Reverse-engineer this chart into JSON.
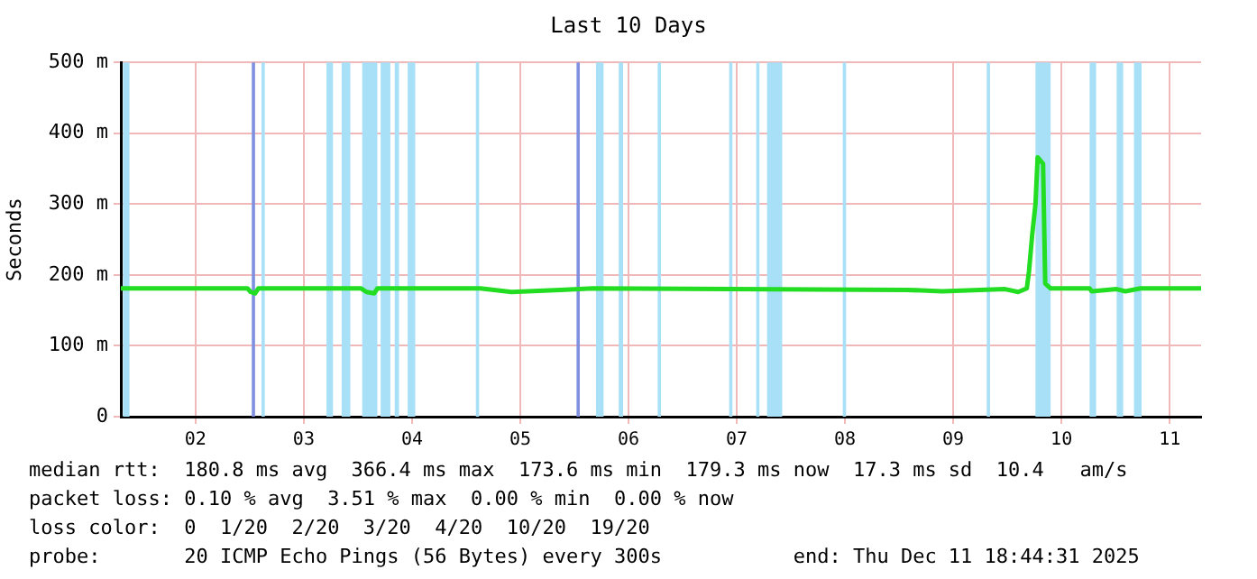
{
  "chart_data": {
    "type": "line",
    "title": "Last 10 Days",
    "ylabel": "Seconds",
    "xlim": [
      1.78,
      11.76
    ],
    "xticks": [
      {
        "value": 2.47,
        "label": "02"
      },
      {
        "value": 3.47,
        "label": "03"
      },
      {
        "value": 4.47,
        "label": "04"
      },
      {
        "value": 5.47,
        "label": "05"
      },
      {
        "value": 6.47,
        "label": "06"
      },
      {
        "value": 7.47,
        "label": "07"
      },
      {
        "value": 8.47,
        "label": "08"
      },
      {
        "value": 9.47,
        "label": "09"
      },
      {
        "value": 10.47,
        "label": "10"
      },
      {
        "value": 11.47,
        "label": "11"
      }
    ],
    "ylim": [
      0,
      500
    ],
    "yticks": [
      0,
      {
        "value": 100,
        "label": "100 m"
      },
      {
        "value": 200,
        "label": "200 m"
      },
      {
        "value": 300,
        "label": "300 m"
      },
      {
        "value": 400,
        "label": "400 m"
      },
      {
        "value": 500,
        "label": "500 m"
      }
    ],
    "grid": true,
    "legend": false,
    "marker": "none",
    "line_style": "solid",
    "series": [
      {
        "color": "#22dd22",
        "x": [
          1.78,
          2.95,
          2.98,
          3.02,
          3.05,
          4.0,
          4.05,
          4.12,
          4.15,
          5.1,
          5.39,
          5.84,
          6.14,
          9.04,
          9.37,
          9.95,
          10.07,
          10.15,
          10.17,
          10.2,
          10.23,
          10.25,
          10.3,
          10.32,
          10.37,
          10.73,
          10.75,
          10.98,
          11.06,
          11.2,
          11.76
        ],
        "values": [
          181,
          181,
          176,
          174,
          181,
          181,
          176,
          174,
          181,
          181,
          176,
          179,
          181,
          179,
          177,
          180,
          176,
          181,
          205,
          257,
          300,
          366,
          357,
          188,
          181,
          181,
          177,
          180,
          177,
          181,
          181
        ]
      }
    ],
    "bands": [
      {
        "axis": "x",
        "from": 1.8,
        "to": 1.86,
        "color": "#a8e0f8"
      },
      {
        "axis": "x",
        "from": 2.99,
        "to": 3.02,
        "color": "#8090e0"
      },
      {
        "axis": "x",
        "from": 3.08,
        "to": 3.11,
        "color": "#a8e0f8"
      },
      {
        "axis": "x",
        "from": 3.68,
        "to": 3.74,
        "color": "#a8e0f8"
      },
      {
        "axis": "x",
        "from": 3.82,
        "to": 3.9,
        "color": "#a8e0f8"
      },
      {
        "axis": "x",
        "from": 4.01,
        "to": 4.15,
        "color": "#a8e0f8"
      },
      {
        "axis": "x",
        "from": 4.18,
        "to": 4.27,
        "color": "#a8e0f8"
      },
      {
        "axis": "x",
        "from": 4.31,
        "to": 4.35,
        "color": "#a8e0f8"
      },
      {
        "axis": "x",
        "from": 4.43,
        "to": 4.5,
        "color": "#a8e0f8"
      },
      {
        "axis": "x",
        "from": 5.06,
        "to": 5.09,
        "color": "#a8e0f8"
      },
      {
        "axis": "x",
        "from": 5.99,
        "to": 6.02,
        "color": "#8090e0"
      },
      {
        "axis": "x",
        "from": 6.17,
        "to": 6.24,
        "color": "#a8e0f8"
      },
      {
        "axis": "x",
        "from": 6.38,
        "to": 6.42,
        "color": "#a8e0f8"
      },
      {
        "axis": "x",
        "from": 6.74,
        "to": 6.77,
        "color": "#a8e0f8"
      },
      {
        "axis": "x",
        "from": 7.4,
        "to": 7.43,
        "color": "#a8e0f8"
      },
      {
        "axis": "x",
        "from": 7.65,
        "to": 7.68,
        "color": "#a8e0f8"
      },
      {
        "axis": "x",
        "from": 7.75,
        "to": 7.89,
        "color": "#a8e0f8"
      },
      {
        "axis": "x",
        "from": 8.45,
        "to": 8.48,
        "color": "#a8e0f8"
      },
      {
        "axis": "x",
        "from": 9.78,
        "to": 9.81,
        "color": "#a8e0f8"
      },
      {
        "axis": "x",
        "from": 10.23,
        "to": 10.37,
        "color": "#a8e0f8"
      },
      {
        "axis": "x",
        "from": 10.73,
        "to": 10.79,
        "color": "#a8e0f8"
      },
      {
        "axis": "x",
        "from": 10.98,
        "to": 11.04,
        "color": "#a8e0f8"
      },
      {
        "axis": "x",
        "from": 11.14,
        "to": 11.21,
        "color": "#a8e0f8"
      }
    ],
    "annotations": [
      "median rtt:  180.8 ms avg  366.4 ms max  173.6 ms min  179.3 ms now  17.3 ms sd  10.4   am/s",
      "packet loss: 0.10 % avg  3.51 % max  0.00 % min  0.00 % now",
      "loss color:  0  1/20  2/20  3/20  4/20  10/20  19/20",
      "probe:       20 ICMP Echo Pings (56 Bytes) every 300s           end: Thu Dec 11 18:44:31 2025"
    ]
  }
}
